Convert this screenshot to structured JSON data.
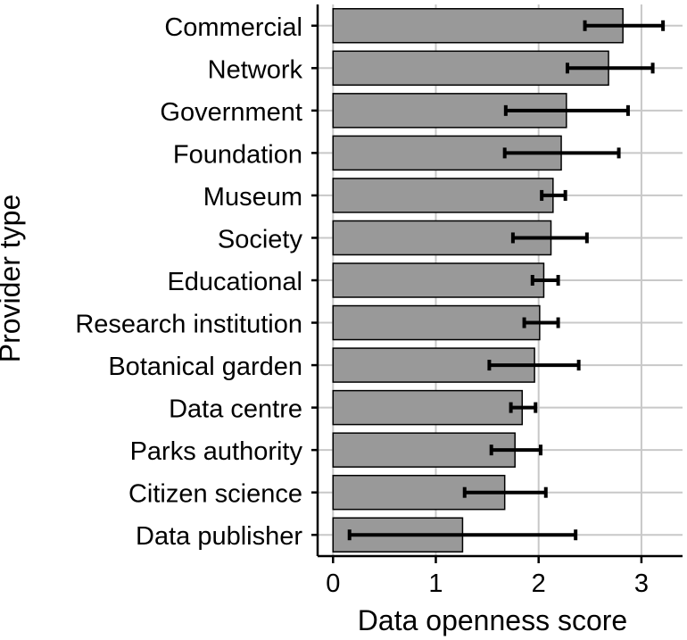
{
  "chart_data": {
    "type": "bar",
    "orientation": "horizontal",
    "title": "",
    "xlabel": "Data openness score",
    "ylabel": "Provider type",
    "xlim": [
      -0.15,
      3.4
    ],
    "xticks": [
      0,
      1,
      2,
      3
    ],
    "grid": true,
    "bar_color": "#999999",
    "error_bar_color": "#000000",
    "categories": [
      "Commercial",
      "Network",
      "Government",
      "Foundation",
      "Museum",
      "Society",
      "Educational",
      "Research institution",
      "Botanical garden",
      "Data centre",
      "Parks authority",
      "Citizen science",
      "Data publisher"
    ],
    "values": [
      2.82,
      2.68,
      2.27,
      2.22,
      2.14,
      2.12,
      2.05,
      2.01,
      1.96,
      1.84,
      1.77,
      1.67,
      1.26
    ],
    "error_low": [
      2.45,
      2.28,
      1.68,
      1.67,
      2.03,
      1.75,
      1.94,
      1.86,
      1.52,
      1.73,
      1.54,
      1.28,
      0.16
    ],
    "error_high": [
      3.21,
      3.11,
      2.87,
      2.78,
      2.26,
      2.47,
      2.19,
      2.19,
      2.39,
      1.97,
      2.02,
      2.07,
      2.36
    ]
  }
}
